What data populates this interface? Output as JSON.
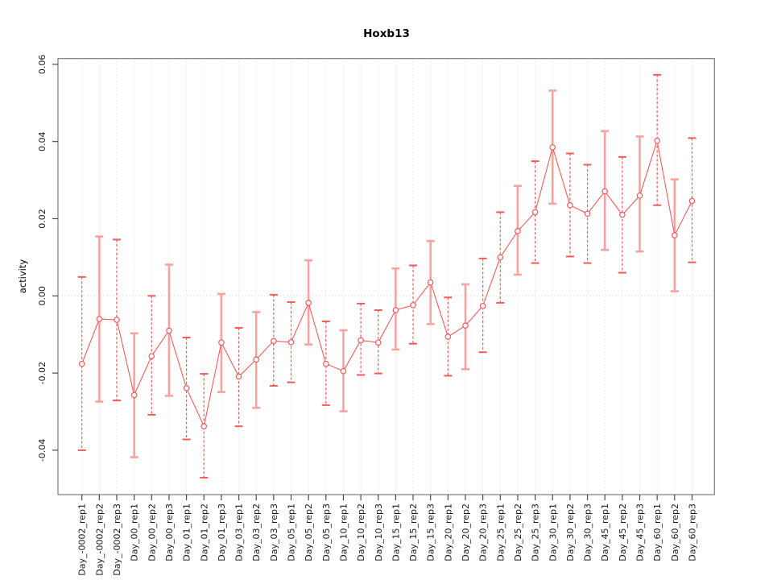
{
  "chart_data": {
    "type": "line",
    "title": "Hoxb13",
    "xlabel": "",
    "ylabel": "activity",
    "legend": "none",
    "grid": "vertical dotted gridline at every category; horizontal dotted line at y=0 only",
    "marker": "open-circle",
    "ylim": [
      -0.0515,
      0.0615
    ],
    "yticks": [
      0.06,
      0.04,
      0.02,
      0.0,
      -0.02,
      -0.04
    ],
    "ytick_labels": [
      "0.06",
      "0.04",
      "0.02",
      "0.00",
      "-0.02",
      "-0.04"
    ],
    "categories": [
      "Day_-0002_rep1",
      "Day_-0002_rep2",
      "Day_-0002_rep3",
      "Day_00_rep1",
      "Day_00_rep2",
      "Day_00_rep3",
      "Day_01_rep1",
      "Day_01_rep2",
      "Day_01_rep3",
      "Day_03_rep1",
      "Day_03_rep2",
      "Day_03_rep3",
      "Day_05_rep1",
      "Day_05_rep2",
      "Day_05_rep3",
      "Day_10_rep1",
      "Day_10_rep2",
      "Day_10_rep3",
      "Day_15_rep1",
      "Day_15_rep2",
      "Day_15_rep3",
      "Day_20_rep1",
      "Day_20_rep2",
      "Day_20_rep3",
      "Day_25_rep1",
      "Day_25_rep2",
      "Day_25_rep3",
      "Day_30_rep1",
      "Day_30_rep2",
      "Day_30_rep3",
      "Day_45_rep1",
      "Day_45_rep2",
      "Day_45_rep3",
      "Day_60_rep1",
      "Day_60_rep2",
      "Day_60_rep3"
    ],
    "series": [
      {
        "name": "activity",
        "values": [
          -0.0176,
          -0.006,
          -0.0062,
          -0.0257,
          -0.0156,
          -0.009,
          -0.0239,
          -0.0338,
          -0.0121,
          -0.0209,
          -0.0165,
          -0.0117,
          -0.012,
          -0.0018,
          -0.0176,
          -0.0195,
          -0.0115,
          -0.0121,
          -0.0037,
          -0.0024,
          0.0035,
          -0.0106,
          -0.0077,
          -0.0026,
          0.01,
          0.0168,
          0.0217,
          0.0385,
          0.0235,
          0.0213,
          0.0271,
          0.021,
          0.026,
          0.0402,
          0.0157,
          0.0246
        ],
        "lower": [
          -0.04,
          -0.0274,
          -0.0271,
          -0.0418,
          -0.0308,
          -0.0259,
          -0.0372,
          -0.0471,
          -0.0249,
          -0.0338,
          -0.029,
          -0.0233,
          -0.0224,
          -0.0126,
          -0.0283,
          -0.0299,
          -0.0205,
          -0.0201,
          -0.0139,
          -0.0124,
          -0.0073,
          -0.0207,
          -0.019,
          -0.0146,
          -0.0018,
          0.0055,
          0.0085,
          0.0239,
          0.0102,
          0.0085,
          0.0119,
          0.006,
          0.0115,
          0.0235,
          0.0012,
          0.0087
        ],
        "upper": [
          0.0049,
          0.0154,
          0.0146,
          -0.0097,
          0.0,
          0.0081,
          -0.0108,
          -0.0202,
          0.0005,
          -0.0083,
          -0.0042,
          0.0003,
          -0.0016,
          0.0092,
          -0.0066,
          -0.0089,
          -0.002,
          -0.0037,
          0.0071,
          0.0079,
          0.0142,
          -0.0004,
          0.003,
          0.0097,
          0.0217,
          0.0285,
          0.0349,
          0.0532,
          0.0369,
          0.034,
          0.0427,
          0.036,
          0.0413,
          0.0573,
          0.0302,
          0.0409
        ],
        "error_bar_styles": [
          "dashed",
          "solid",
          "dashed",
          "solid",
          "dashed",
          "solid",
          "dashed",
          "dashed",
          "solid",
          "dashed",
          "solid",
          "dashed",
          "dashed",
          "solid",
          "dashed",
          "solid",
          "dashed",
          "dashed",
          "solid",
          "dashed",
          "solid",
          "dashed",
          "solid",
          "dashed",
          "dashed",
          "solid",
          "dashed",
          "solid",
          "dashed",
          "dashed",
          "solid",
          "dashed",
          "solid",
          "dashed",
          "solid",
          "dashed"
        ]
      }
    ],
    "colors": {
      "series": "#f15b5b",
      "error_bar_dashed": "#f15b5b",
      "error_bar_solid": "#f8a2a2",
      "marker_fill": "#ffffff",
      "gridline": "#d8d8d8",
      "zero_line": "#dadada",
      "frame": "#7d7d7d",
      "tick": "#4a4a4a",
      "text": "#1a1a1a"
    }
  }
}
